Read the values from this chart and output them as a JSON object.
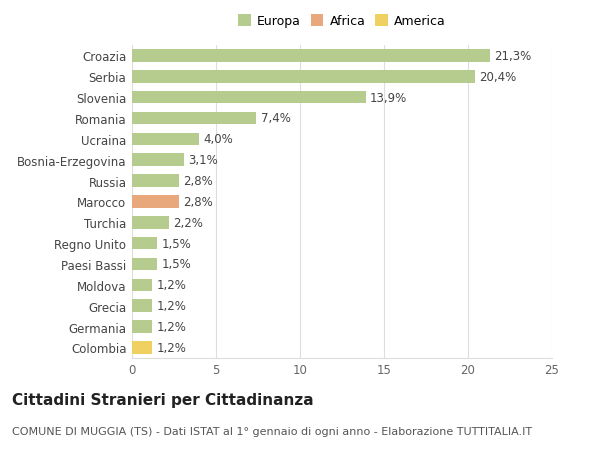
{
  "categories": [
    "Croazia",
    "Serbia",
    "Slovenia",
    "Romania",
    "Ucraina",
    "Bosnia-Erzegovina",
    "Russia",
    "Marocco",
    "Turchia",
    "Regno Unito",
    "Paesi Bassi",
    "Moldova",
    "Grecia",
    "Germania",
    "Colombia"
  ],
  "values": [
    21.3,
    20.4,
    13.9,
    7.4,
    4.0,
    3.1,
    2.8,
    2.8,
    2.2,
    1.5,
    1.5,
    1.2,
    1.2,
    1.2,
    1.2
  ],
  "labels": [
    "21,3%",
    "20,4%",
    "13,9%",
    "7,4%",
    "4,0%",
    "3,1%",
    "2,8%",
    "2,8%",
    "2,2%",
    "1,5%",
    "1,5%",
    "1,2%",
    "1,2%",
    "1,2%",
    "1,2%"
  ],
  "continent": [
    "Europa",
    "Europa",
    "Europa",
    "Europa",
    "Europa",
    "Europa",
    "Europa",
    "Africa",
    "Europa",
    "Europa",
    "Europa",
    "Europa",
    "Europa",
    "Europa",
    "America"
  ],
  "bar_colors": {
    "Europa": "#b5cc8e",
    "Africa": "#e8a87c",
    "America": "#f0d060"
  },
  "legend_colors": {
    "Europa": "#b5cc8e",
    "Africa": "#e8a87c",
    "America": "#f0d060"
  },
  "xlim": [
    0,
    25
  ],
  "xticks": [
    0,
    5,
    10,
    15,
    20,
    25
  ],
  "title": "Cittadini Stranieri per Cittadinanza",
  "subtitle": "COMUNE DI MUGGIA (TS) - Dati ISTAT al 1° gennaio di ogni anno - Elaborazione TUTTITALIA.IT",
  "background_color": "#ffffff",
  "grid_color": "#dddddd",
  "bar_height": 0.6,
  "label_fontsize": 8.5,
  "tick_fontsize": 8.5,
  "title_fontsize": 11,
  "subtitle_fontsize": 8
}
